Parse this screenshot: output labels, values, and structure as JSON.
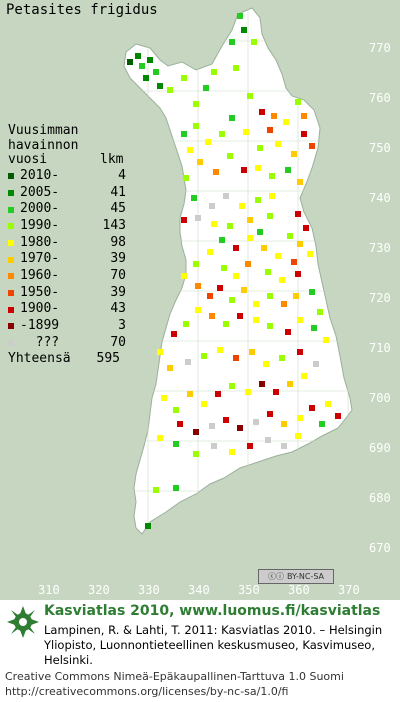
{
  "title": "Petasites frigidus",
  "legend": {
    "header": [
      "Vuusimman",
      "havainnon",
      "vuosi"
    ],
    "count_header": "lkm",
    "items": [
      {
        "label": "2010-",
        "count": "4",
        "color": "#005a00"
      },
      {
        "label": "2005-",
        "count": "41",
        "color": "#008800"
      },
      {
        "label": "2000-",
        "count": "45",
        "color": "#22cc22"
      },
      {
        "label": "1990-",
        "count": "143",
        "color": "#99ff00"
      },
      {
        "label": "1980-",
        "count": "98",
        "color": "#ffff00"
      },
      {
        "label": "1970-",
        "count": "39",
        "color": "#ffcc00"
      },
      {
        "label": "1960-",
        "count": "70",
        "color": "#ff8800"
      },
      {
        "label": "1950-",
        "count": "39",
        "color": "#ee4400"
      },
      {
        "label": "1900-",
        "count": "43",
        "color": "#cc0000"
      },
      {
        "label": "-1899",
        "count": "3",
        "color": "#880000"
      },
      {
        "label": "???",
        "count": "70",
        "color": "#cccccc"
      }
    ],
    "total_label": "Yhteensä",
    "total_count": "595"
  },
  "axes": {
    "y_ticks": [
      "770",
      "760",
      "750",
      "740",
      "730",
      "720",
      "710",
      "700",
      "690",
      "680",
      "670"
    ],
    "x_ticks": [
      "310",
      "320",
      "330",
      "340",
      "350",
      "360",
      "370"
    ]
  },
  "cc_badge": "BY-NC-SA",
  "footer": {
    "title": "Kasviatlas 2010, www.luomus.fi/kasviatlas",
    "citation": "Lampinen, R. & Lahti, T. 2011: Kasviatlas 2010. – Helsingin Yliopisto, Luonnontieteellinen keskusmuseo, Kasvimuseo, Helsinki.",
    "license": "Creative Commons Nimeä-Epäkaupallinen-Tarttuva 1.0 Suomi",
    "license_url": "http://creativecommons.org/licenses/by-nc-sa/1.0/fi"
  },
  "colors": {
    "land": "#ffffff",
    "background": "#c6d6c0",
    "accent": "#2e7d32"
  },
  "occurrences": [
    {
      "x": 150,
      "y": 60,
      "c": 1
    },
    {
      "x": 138,
      "y": 56,
      "c": 1
    },
    {
      "x": 142,
      "y": 66,
      "c": 2
    },
    {
      "x": 130,
      "y": 62,
      "c": 0
    },
    {
      "x": 146,
      "y": 78,
      "c": 1
    },
    {
      "x": 160,
      "y": 86,
      "c": 1
    },
    {
      "x": 156,
      "y": 72,
      "c": 2
    },
    {
      "x": 170,
      "y": 90,
      "c": 3
    },
    {
      "x": 184,
      "y": 78,
      "c": 3
    },
    {
      "x": 196,
      "y": 104,
      "c": 3
    },
    {
      "x": 206,
      "y": 88,
      "c": 2
    },
    {
      "x": 214,
      "y": 72,
      "c": 3
    },
    {
      "x": 232,
      "y": 42,
      "c": 2
    },
    {
      "x": 244,
      "y": 30,
      "c": 1
    },
    {
      "x": 240,
      "y": 16,
      "c": 2
    },
    {
      "x": 254,
      "y": 42,
      "c": 3
    },
    {
      "x": 236,
      "y": 68,
      "c": 3
    },
    {
      "x": 250,
      "y": 96,
      "c": 3
    },
    {
      "x": 262,
      "y": 112,
      "c": 8
    },
    {
      "x": 274,
      "y": 116,
      "c": 6
    },
    {
      "x": 270,
      "y": 130,
      "c": 7
    },
    {
      "x": 286,
      "y": 122,
      "c": 4
    },
    {
      "x": 298,
      "y": 102,
      "c": 3
    },
    {
      "x": 304,
      "y": 116,
      "c": 6
    },
    {
      "x": 304,
      "y": 134,
      "c": 8
    },
    {
      "x": 312,
      "y": 146,
      "c": 7
    },
    {
      "x": 294,
      "y": 154,
      "c": 5
    },
    {
      "x": 278,
      "y": 144,
      "c": 4
    },
    {
      "x": 260,
      "y": 148,
      "c": 3
    },
    {
      "x": 246,
      "y": 132,
      "c": 4
    },
    {
      "x": 232,
      "y": 118,
      "c": 2
    },
    {
      "x": 222,
      "y": 134,
      "c": 3
    },
    {
      "x": 208,
      "y": 142,
      "c": 4
    },
    {
      "x": 196,
      "y": 126,
      "c": 3
    },
    {
      "x": 184,
      "y": 134,
      "c": 2
    },
    {
      "x": 190,
      "y": 150,
      "c": 4
    },
    {
      "x": 200,
      "y": 162,
      "c": 5
    },
    {
      "x": 216,
      "y": 172,
      "c": 6
    },
    {
      "x": 230,
      "y": 156,
      "c": 3
    },
    {
      "x": 244,
      "y": 170,
      "c": 8
    },
    {
      "x": 258,
      "y": 168,
      "c": 4
    },
    {
      "x": 272,
      "y": 176,
      "c": 3
    },
    {
      "x": 288,
      "y": 170,
      "c": 2
    },
    {
      "x": 300,
      "y": 182,
      "c": 5
    },
    {
      "x": 186,
      "y": 178,
      "c": 3
    },
    {
      "x": 194,
      "y": 198,
      "c": 2
    },
    {
      "x": 184,
      "y": 220,
      "c": 8
    },
    {
      "x": 198,
      "y": 218,
      "c": 10
    },
    {
      "x": 212,
      "y": 206,
      "c": 10
    },
    {
      "x": 226,
      "y": 196,
      "c": 10
    },
    {
      "x": 242,
      "y": 206,
      "c": 4
    },
    {
      "x": 258,
      "y": 200,
      "c": 3
    },
    {
      "x": 272,
      "y": 196,
      "c": 4
    },
    {
      "x": 298,
      "y": 214,
      "c": 8
    },
    {
      "x": 306,
      "y": 228,
      "c": 8
    },
    {
      "x": 300,
      "y": 244,
      "c": 5
    },
    {
      "x": 290,
      "y": 236,
      "c": 3
    },
    {
      "x": 310,
      "y": 254,
      "c": 4
    },
    {
      "x": 294,
      "y": 262,
      "c": 7
    },
    {
      "x": 278,
      "y": 256,
      "c": 4
    },
    {
      "x": 264,
      "y": 248,
      "c": 5
    },
    {
      "x": 250,
      "y": 238,
      "c": 4
    },
    {
      "x": 236,
      "y": 248,
      "c": 8
    },
    {
      "x": 222,
      "y": 240,
      "c": 2
    },
    {
      "x": 210,
      "y": 252,
      "c": 4
    },
    {
      "x": 196,
      "y": 264,
      "c": 3
    },
    {
      "x": 184,
      "y": 276,
      "c": 4
    },
    {
      "x": 198,
      "y": 286,
      "c": 6
    },
    {
      "x": 210,
      "y": 296,
      "c": 7
    },
    {
      "x": 220,
      "y": 288,
      "c": 8
    },
    {
      "x": 232,
      "y": 300,
      "c": 3
    },
    {
      "x": 244,
      "y": 290,
      "c": 5
    },
    {
      "x": 256,
      "y": 304,
      "c": 4
    },
    {
      "x": 270,
      "y": 296,
      "c": 3
    },
    {
      "x": 284,
      "y": 304,
      "c": 6
    },
    {
      "x": 296,
      "y": 296,
      "c": 5
    },
    {
      "x": 312,
      "y": 292,
      "c": 2
    },
    {
      "x": 320,
      "y": 312,
      "c": 3
    },
    {
      "x": 300,
      "y": 320,
      "c": 4
    },
    {
      "x": 288,
      "y": 332,
      "c": 8
    },
    {
      "x": 270,
      "y": 326,
      "c": 3
    },
    {
      "x": 256,
      "y": 320,
      "c": 4
    },
    {
      "x": 240,
      "y": 316,
      "c": 8
    },
    {
      "x": 226,
      "y": 324,
      "c": 3
    },
    {
      "x": 212,
      "y": 316,
      "c": 6
    },
    {
      "x": 198,
      "y": 310,
      "c": 4
    },
    {
      "x": 186,
      "y": 324,
      "c": 3
    },
    {
      "x": 174,
      "y": 334,
      "c": 8
    },
    {
      "x": 160,
      "y": 352,
      "c": 4
    },
    {
      "x": 170,
      "y": 368,
      "c": 5
    },
    {
      "x": 188,
      "y": 362,
      "c": 10
    },
    {
      "x": 204,
      "y": 356,
      "c": 3
    },
    {
      "x": 220,
      "y": 350,
      "c": 4
    },
    {
      "x": 236,
      "y": 358,
      "c": 7
    },
    {
      "x": 252,
      "y": 352,
      "c": 5
    },
    {
      "x": 266,
      "y": 364,
      "c": 4
    },
    {
      "x": 282,
      "y": 358,
      "c": 3
    },
    {
      "x": 300,
      "y": 352,
      "c": 8
    },
    {
      "x": 316,
      "y": 364,
      "c": 10
    },
    {
      "x": 304,
      "y": 376,
      "c": 4
    },
    {
      "x": 290,
      "y": 384,
      "c": 5
    },
    {
      "x": 276,
      "y": 392,
      "c": 8
    },
    {
      "x": 262,
      "y": 384,
      "c": 9
    },
    {
      "x": 248,
      "y": 392,
      "c": 4
    },
    {
      "x": 232,
      "y": 386,
      "c": 3
    },
    {
      "x": 218,
      "y": 394,
      "c": 8
    },
    {
      "x": 204,
      "y": 404,
      "c": 4
    },
    {
      "x": 190,
      "y": 394,
      "c": 5
    },
    {
      "x": 176,
      "y": 410,
      "c": 3
    },
    {
      "x": 164,
      "y": 398,
      "c": 4
    },
    {
      "x": 180,
      "y": 424,
      "c": 8
    },
    {
      "x": 196,
      "y": 432,
      "c": 9
    },
    {
      "x": 212,
      "y": 426,
      "c": 10
    },
    {
      "x": 226,
      "y": 420,
      "c": 8
    },
    {
      "x": 240,
      "y": 428,
      "c": 9
    },
    {
      "x": 256,
      "y": 422,
      "c": 10
    },
    {
      "x": 270,
      "y": 414,
      "c": 8
    },
    {
      "x": 284,
      "y": 424,
      "c": 5
    },
    {
      "x": 300,
      "y": 418,
      "c": 4
    },
    {
      "x": 322,
      "y": 424,
      "c": 2
    },
    {
      "x": 312,
      "y": 408,
      "c": 8
    },
    {
      "x": 268,
      "y": 440,
      "c": 10
    },
    {
      "x": 250,
      "y": 446,
      "c": 8
    },
    {
      "x": 232,
      "y": 452,
      "c": 4
    },
    {
      "x": 214,
      "y": 446,
      "c": 10
    },
    {
      "x": 196,
      "y": 454,
      "c": 3
    },
    {
      "x": 176,
      "y": 444,
      "c": 2
    },
    {
      "x": 160,
      "y": 438,
      "c": 4
    },
    {
      "x": 176,
      "y": 488,
      "c": 2
    },
    {
      "x": 156,
      "y": 490,
      "c": 3
    },
    {
      "x": 148,
      "y": 526,
      "c": 1
    },
    {
      "x": 260,
      "y": 232,
      "c": 2
    },
    {
      "x": 224,
      "y": 268,
      "c": 3
    },
    {
      "x": 236,
      "y": 276,
      "c": 4
    },
    {
      "x": 248,
      "y": 264,
      "c": 6
    },
    {
      "x": 230,
      "y": 226,
      "c": 3
    },
    {
      "x": 214,
      "y": 224,
      "c": 4
    },
    {
      "x": 250,
      "y": 220,
      "c": 5
    },
    {
      "x": 270,
      "y": 216,
      "c": 3
    },
    {
      "x": 282,
      "y": 280,
      "c": 4
    },
    {
      "x": 268,
      "y": 272,
      "c": 3
    },
    {
      "x": 298,
      "y": 274,
      "c": 8
    },
    {
      "x": 314,
      "y": 328,
      "c": 2
    },
    {
      "x": 326,
      "y": 340,
      "c": 4
    },
    {
      "x": 328,
      "y": 404,
      "c": 4
    },
    {
      "x": 338,
      "y": 416,
      "c": 8
    },
    {
      "x": 284,
      "y": 446,
      "c": 10
    },
    {
      "x": 298,
      "y": 436,
      "c": 4
    }
  ]
}
